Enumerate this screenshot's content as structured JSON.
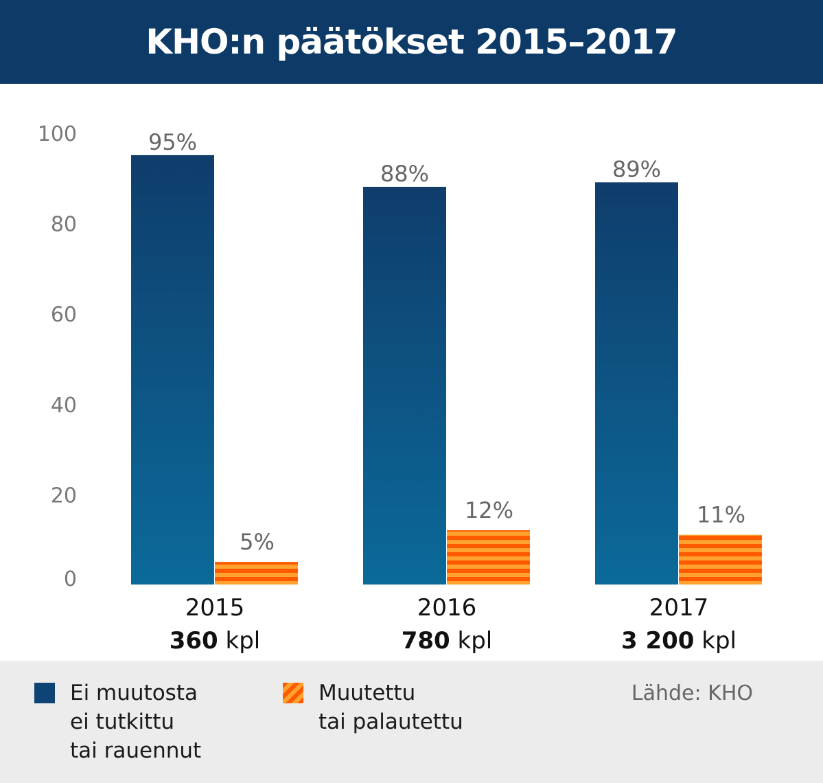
{
  "title": "KHO:n päätökset 2015–2017",
  "chart_data": {
    "type": "bar",
    "categories": [
      "2015",
      "2016",
      "2017"
    ],
    "category_totals": [
      "360",
      "780",
      "3 200"
    ],
    "total_unit": "kpl",
    "series": [
      {
        "name": "Ei muutosta\nei tutkittu\ntai rauennut",
        "values": [
          95,
          88,
          89
        ],
        "labels": [
          "95%",
          "88%",
          "89%"
        ]
      },
      {
        "name": "Muutettu\ntai palautettu",
        "values": [
          5,
          12,
          11
        ],
        "labels": [
          "5%",
          "12%",
          "11%"
        ]
      }
    ],
    "yticks": [
      "0",
      "20",
      "40",
      "60",
      "80",
      "100"
    ],
    "ylim": [
      0,
      100
    ],
    "grid": false,
    "legend": "bottom"
  },
  "source": "Lähde: KHO",
  "colors": {
    "header": "#0d3a66",
    "bar_top": "#0f3d6c",
    "bar_bottom": "#0b6a9a",
    "stripe_a": "#ff5a00",
    "stripe_b": "#ffa22e"
  }
}
